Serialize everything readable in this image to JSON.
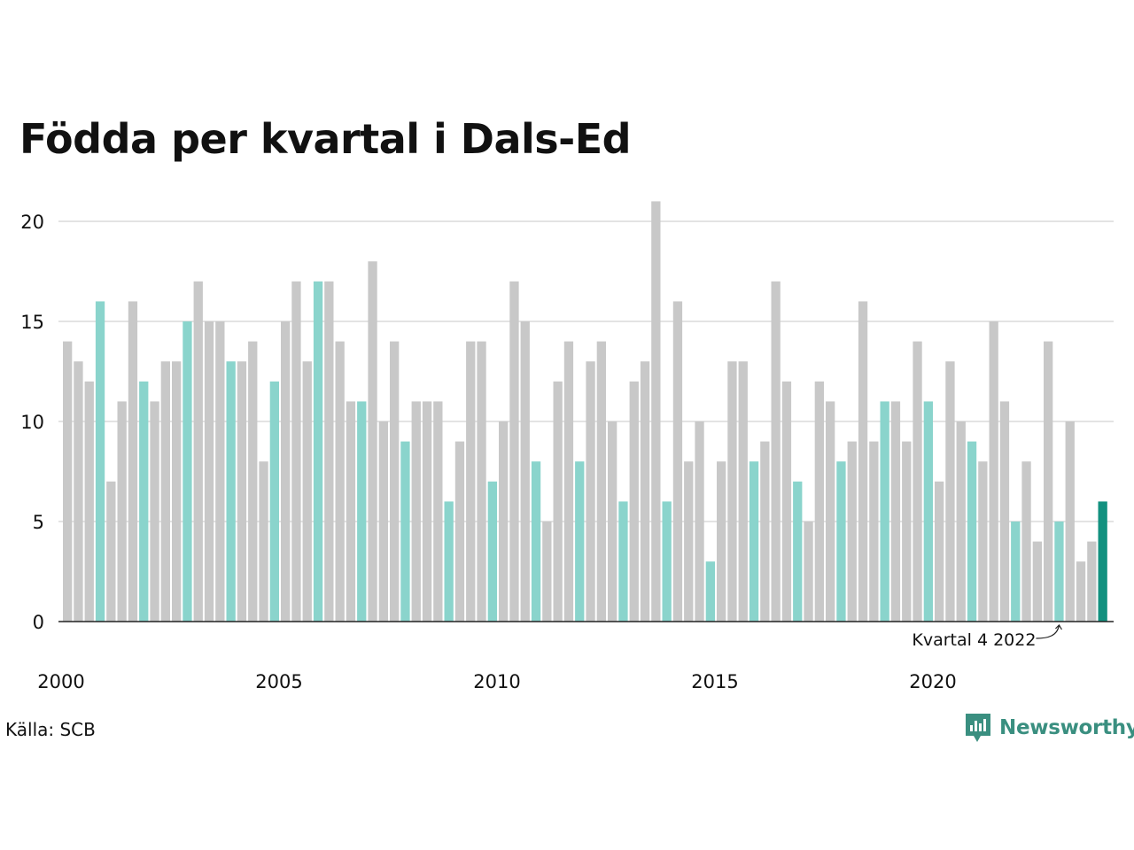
{
  "chart_data": {
    "type": "bar",
    "title": "Födda per kvartal i Dals-Ed",
    "xlabel": "",
    "ylabel": "",
    "ylim": [
      0,
      21
    ],
    "yticks": [
      0,
      5,
      10,
      15,
      20
    ],
    "xtick_labels": [
      "2000",
      "2005",
      "2010",
      "2015",
      "2020"
    ],
    "grid": true,
    "start_year": 2000,
    "colors": {
      "default": "#c8c8c8",
      "quarter_4": "#8ad4cc",
      "latest": "#12917f",
      "grid": "#e3e3e3",
      "baseline": "#222222"
    },
    "categories": [
      "2000 K1",
      "2000 K2",
      "2000 K3",
      "2000 K4",
      "2001 K1",
      "2001 K2",
      "2001 K3",
      "2001 K4",
      "2002 K1",
      "2002 K2",
      "2002 K3",
      "2002 K4",
      "2003 K1",
      "2003 K2",
      "2003 K3",
      "2003 K4",
      "2004 K1",
      "2004 K2",
      "2004 K3",
      "2004 K4",
      "2005 K1",
      "2005 K2",
      "2005 K3",
      "2005 K4",
      "2006 K1",
      "2006 K2",
      "2006 K3",
      "2006 K4",
      "2007 K1",
      "2007 K2",
      "2007 K3",
      "2007 K4",
      "2008 K1",
      "2008 K2",
      "2008 K3",
      "2008 K4",
      "2009 K1",
      "2009 K2",
      "2009 K3",
      "2009 K4",
      "2010 K1",
      "2010 K2",
      "2010 K3",
      "2010 K4",
      "2011 K1",
      "2011 K2",
      "2011 K3",
      "2011 K4",
      "2012 K1",
      "2012 K2",
      "2012 K3",
      "2012 K4",
      "2013 K1",
      "2013 K2",
      "2013 K3",
      "2013 K4",
      "2014 K1",
      "2014 K2",
      "2014 K3",
      "2014 K4",
      "2015 K1",
      "2015 K2",
      "2015 K3",
      "2015 K4",
      "2016 K1",
      "2016 K2",
      "2016 K3",
      "2016 K4",
      "2017 K1",
      "2017 K2",
      "2017 K3",
      "2017 K4",
      "2018 K1",
      "2018 K2",
      "2018 K3",
      "2018 K4",
      "2019 K1",
      "2019 K2",
      "2019 K3",
      "2019 K4",
      "2020 K1",
      "2020 K2",
      "2020 K3",
      "2020 K4",
      "2021 K1",
      "2021 K2",
      "2021 K3",
      "2021 K4",
      "2022 K1",
      "2022 K2",
      "2022 K3",
      "2022 K4",
      "2023 K1",
      "2023 K2",
      "2023 K3",
      "2023 K4"
    ],
    "values": [
      14,
      13,
      12,
      16,
      7,
      11,
      16,
      12,
      11,
      13,
      13,
      15,
      17,
      15,
      15,
      13,
      13,
      14,
      8,
      12,
      15,
      17,
      13,
      17,
      17,
      14,
      11,
      11,
      18,
      10,
      14,
      9,
      11,
      11,
      11,
      6,
      9,
      14,
      14,
      7,
      10,
      17,
      15,
      8,
      5,
      12,
      14,
      8,
      13,
      14,
      10,
      6,
      12,
      13,
      21,
      6,
      16,
      8,
      10,
      3,
      8,
      13,
      13,
      8,
      9,
      17,
      12,
      7,
      5,
      12,
      11,
      8,
      9,
      16,
      9,
      11,
      11,
      9,
      14,
      11,
      7,
      13,
      10,
      9,
      8,
      15,
      11,
      5,
      8,
      4,
      14,
      5,
      10,
      3,
      4,
      6
    ],
    "annotation": {
      "text": "Kvartal 4 2022",
      "index": 91
    }
  },
  "footer": {
    "source": "Källa: SCB",
    "brand": "Newsworthy",
    "brand_icon": "newsworthy-logo-icon"
  }
}
